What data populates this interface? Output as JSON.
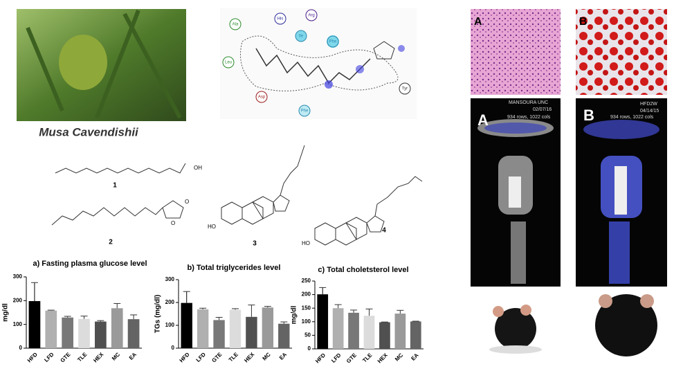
{
  "chart_data": [
    {
      "type": "bar",
      "title": "a) Fasting plasma glucose level",
      "ylabel": "mg/dl",
      "categories": [
        "HFD",
        "LFD",
        "GTE",
        "TLE",
        "HEX",
        "MC",
        "EA"
      ],
      "values": [
        198,
        158,
        129,
        123,
        112,
        168,
        122
      ],
      "errors": [
        78,
        2,
        5,
        12,
        4,
        20,
        18
      ],
      "colors": [
        "#000000",
        "#b0b0b0",
        "#787878",
        "#dcdcdc",
        "#505050",
        "#9a9a9a",
        "#646464"
      ],
      "ylim": [
        0,
        300
      ],
      "yticks": [
        0,
        100,
        200,
        300
      ]
    },
    {
      "type": "bar",
      "title": "b) Total triglycerides level",
      "ylabel": "TGs (mg/dl)",
      "categories": [
        "HFD",
        "LFD",
        "GTE",
        "TLE",
        "HEX",
        "MC",
        "EA"
      ],
      "values": [
        198,
        170,
        123,
        168,
        137,
        178,
        107
      ],
      "errors": [
        50,
        5,
        12,
        5,
        52,
        5,
        8
      ],
      "colors": [
        "#000000",
        "#b0b0b0",
        "#787878",
        "#dcdcdc",
        "#505050",
        "#9a9a9a",
        "#646464"
      ],
      "ylim": [
        0,
        300
      ],
      "yticks": [
        0,
        100,
        200,
        300
      ]
    },
    {
      "type": "bar",
      "title": "c) Total choletsterol level",
      "ylabel": "mg/dl",
      "categories": [
        "HFD",
        "LFD",
        "GTE",
        "TLE",
        "HEX",
        "MC",
        "EA"
      ],
      "values": [
        201,
        150,
        133,
        122,
        98,
        130,
        101
      ],
      "errors": [
        25,
        13,
        10,
        25,
        1,
        12,
        1
      ],
      "colors": [
        "#000000",
        "#b0b0b0",
        "#787878",
        "#dcdcdc",
        "#505050",
        "#9a9a9a",
        "#646464"
      ],
      "ylim": [
        0,
        250
      ],
      "yticks": [
        0,
        50,
        100,
        150,
        200,
        250
      ]
    }
  ],
  "caption": "Musa Cavendishii",
  "compound_labels": [
    "1",
    "2",
    "3",
    "4"
  ],
  "structure_atoms": [
    "OH",
    "O",
    "O",
    "HO",
    "HO"
  ],
  "docking_residues": [
    "Ala",
    "His",
    "Arg",
    "Ile",
    "Phe",
    "Leu",
    "Asp",
    "Phe",
    "Tyr"
  ],
  "panel_labels": [
    "A",
    "B",
    "A",
    "B"
  ],
  "scan_texts": [
    "MANSOURA UNC",
    "02/07/16",
    "934 rows, 1022 cols",
    "HFD2W",
    "04/14/15",
    "934 rows, 1022 cols"
  ]
}
